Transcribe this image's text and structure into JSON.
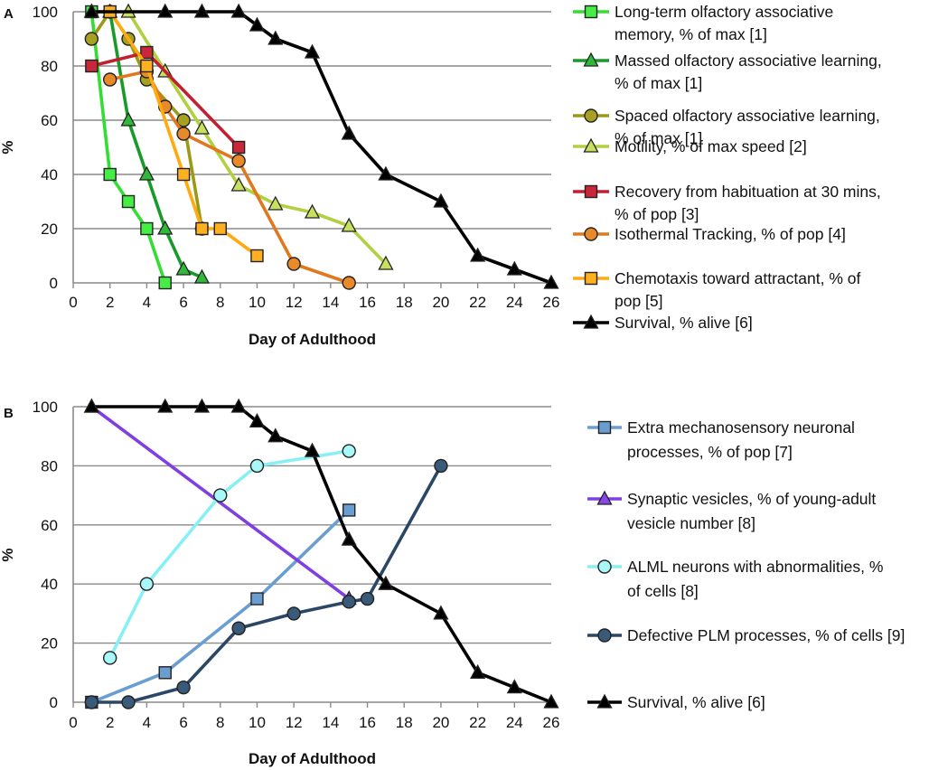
{
  "chart_data": [
    {
      "type": "line",
      "panel": "A",
      "xlabel": "Day of Adulthood",
      "ylabel": "%",
      "xlim": [
        0,
        26
      ],
      "ylim": [
        0,
        100
      ],
      "xticks": [
        "0",
        "2",
        "4",
        "6",
        "8",
        "10",
        "12",
        "14",
        "16",
        "18",
        "20",
        "22",
        "24",
        "26"
      ],
      "yticks": [
        "0",
        "20",
        "40",
        "60",
        "80",
        "100"
      ],
      "grid": "horizontal",
      "legend_position": "right",
      "series": [
        {
          "name": "Long-term olfactory associative memory, % of max [1]",
          "legend_lines": [
            "Long-term olfactory associative",
            "memory, % of max [1]"
          ],
          "color": "#33dd33",
          "marker": "square",
          "markerFill": "#44ee44",
          "x": [
            1,
            2,
            3,
            4,
            5
          ],
          "y": [
            100,
            40,
            30,
            20,
            0
          ]
        },
        {
          "name": "Massed olfactory associative learning, % of max [1]",
          "legend_lines": [
            "Massed olfactory associative learning,",
            "% of max [1]"
          ],
          "color": "#1a9a2a",
          "marker": "triangle",
          "markerFill": "#2fb83a",
          "x": [
            1,
            2,
            3,
            4,
            5,
            6,
            7
          ],
          "y": [
            100,
            100,
            60,
            40,
            20,
            5,
            2
          ]
        },
        {
          "name": "Spaced olfactory associative learning, % of max [1]",
          "legend_lines": [
            "Spaced olfactory associative learning,",
            "% of max [1]"
          ],
          "color": "#9a9a18",
          "marker": "circle",
          "markerFill": "#a8a020",
          "x": [
            1,
            2,
            3,
            4,
            6,
            7
          ],
          "y": [
            90,
            100,
            90,
            75,
            60,
            20
          ]
        },
        {
          "name": "Motility, % of max speed [2]",
          "legend_lines": [
            "Motility, % of max speed [2]"
          ],
          "color": "#b0d040",
          "marker": "triangle",
          "markerFill": "#c8e060",
          "x": [
            3,
            5,
            7,
            9,
            11,
            13,
            15,
            17
          ],
          "y": [
            100,
            78,
            57,
            36,
            29,
            26,
            21,
            7
          ]
        },
        {
          "name": "Recovery from habituation at 30 mins, % of pop [3]",
          "legend_lines": [
            "Recovery from habituation at 30 mins,",
            "% of pop [3]"
          ],
          "color": "#c02030",
          "marker": "square",
          "markerFill": "#c8283a",
          "x": [
            1,
            4,
            9
          ],
          "y": [
            80,
            85,
            50
          ]
        },
        {
          "name": "Isothermal Tracking, % of pop [4]",
          "legend_lines": [
            "Isothermal Tracking, % of pop  [4]"
          ],
          "color": "#e07820",
          "marker": "circle",
          "markerFill": "#e88a2a",
          "x": [
            2,
            4,
            5,
            6,
            9,
            12,
            15
          ],
          "y": [
            75,
            78,
            65,
            55,
            45,
            7,
            0
          ]
        },
        {
          "name": "Chemotaxis toward attractant, % of pop [5]",
          "legend_lines": [
            "Chemotaxis toward attractant, % of",
            "pop [5]"
          ],
          "color": "#ffaa10",
          "marker": "square",
          "markerFill": "#ffb020",
          "x": [
            2,
            4,
            6,
            7,
            8,
            10
          ],
          "y": [
            100,
            80,
            40,
            20,
            20,
            10
          ]
        },
        {
          "name": "Survival, % alive [6]",
          "legend_lines": [
            "Survival, % alive [6]"
          ],
          "color": "#000000",
          "marker": "triangle",
          "markerFill": "#000000",
          "x": [
            1,
            5,
            7,
            9,
            10,
            11,
            13,
            15,
            17,
            20,
            22,
            24,
            26
          ],
          "y": [
            100,
            100,
            100,
            100,
            95,
            90,
            85,
            55,
            40,
            30,
            10,
            5,
            0
          ]
        }
      ]
    },
    {
      "type": "line",
      "panel": "B",
      "xlabel": "Day of Adulthood",
      "ylabel": "%",
      "xlim": [
        0,
        26
      ],
      "ylim": [
        0,
        100
      ],
      "xticks": [
        "0",
        "2",
        "4",
        "6",
        "8",
        "10",
        "12",
        "14",
        "16",
        "18",
        "20",
        "22",
        "24",
        "26"
      ],
      "yticks": [
        "0",
        "20",
        "40",
        "60",
        "80",
        "100"
      ],
      "grid": "horizontal",
      "legend_position": "right",
      "series": [
        {
          "name": "Extra mechanosensory neuronal processes, % of pop [7]",
          "legend_lines": [
            "Extra mechanosensory neuronal",
            "processes, % of pop  [7]"
          ],
          "color": "#6a9ed0",
          "marker": "square",
          "markerFill": "#6a9ed0",
          "x": [
            1,
            5,
            10,
            15
          ],
          "y": [
            0,
            10,
            35,
            65
          ]
        },
        {
          "name": "Synaptic vesicles, % of young-adult vesicle number [8]",
          "legend_lines": [
            "Synaptic vesicles, % of young-adult",
            "vesicle number  [8]"
          ],
          "color": "#8040e0",
          "marker": "triangle",
          "markerFill": "#8848e8",
          "x": [
            1,
            15
          ],
          "y": [
            100,
            35
          ]
        },
        {
          "name": "ALML neurons with abnormalities, % of cells [8]",
          "legend_lines": [
            "ALML neurons with abnormalities, %",
            "of cells [8]"
          ],
          "color": "#88f0f4",
          "marker": "circle",
          "markerFill": "#a8f8fa",
          "x": [
            2,
            4,
            8,
            10,
            15
          ],
          "y": [
            15,
            40,
            70,
            80,
            85
          ]
        },
        {
          "name": "Defective PLM processes, % of cells [9]",
          "legend_lines": [
            "Defective PLM processes, % of cells [9]"
          ],
          "color": "#2a4866",
          "marker": "circle",
          "markerFill": "#3a5a7a",
          "x": [
            1,
            3,
            6,
            9,
            12,
            15,
            16,
            20
          ],
          "y": [
            0,
            0,
            5,
            25,
            30,
            34,
            35,
            80
          ]
        },
        {
          "name": "Survival, % alive [6]",
          "legend_lines": [
            "Survival, % alive [6]"
          ],
          "color": "#000000",
          "marker": "triangle",
          "markerFill": "#000000",
          "x": [
            1,
            5,
            7,
            9,
            10,
            11,
            13,
            15,
            17,
            20,
            22,
            24,
            26
          ],
          "y": [
            100,
            100,
            100,
            100,
            95,
            90,
            85,
            55,
            40,
            30,
            10,
            5,
            0
          ]
        }
      ]
    }
  ]
}
